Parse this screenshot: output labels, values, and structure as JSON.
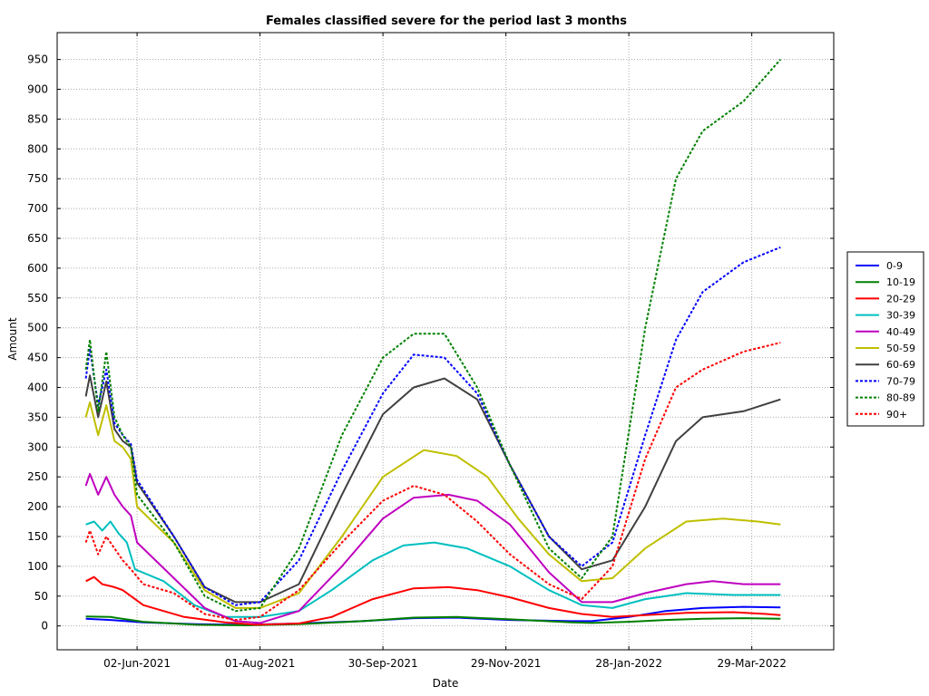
{
  "chart_data": {
    "type": "line",
    "title": "Females classified severe for the period last 3 months",
    "xlabel": "Date",
    "ylabel": "Amount",
    "xlim": [
      "2021-04-24",
      "2022-05-08"
    ],
    "ylim": [
      -40,
      995
    ],
    "yticks": [
      0,
      50,
      100,
      150,
      200,
      250,
      300,
      350,
      400,
      450,
      500,
      550,
      600,
      650,
      700,
      750,
      800,
      850,
      900,
      950
    ],
    "xticks": [
      {
        "date": "2021-06-02",
        "label": "02-Jun-2021"
      },
      {
        "date": "2021-08-01",
        "label": "01-Aug-2021"
      },
      {
        "date": "2021-09-30",
        "label": "30-Sep-2021"
      },
      {
        "date": "2021-11-29",
        "label": "29-Nov-2021"
      },
      {
        "date": "2022-01-28",
        "label": "28-Jan-2022"
      },
      {
        "date": "2022-03-29",
        "label": "29-Mar-2022"
      }
    ],
    "grid": true,
    "legend_position": "right",
    "series": [
      {
        "name": "0-9",
        "color": "#0000ff",
        "dash": false,
        "points": [
          [
            "2021-05-08",
            12
          ],
          [
            "2021-05-20",
            10
          ],
          [
            "2021-06-05",
            6
          ],
          [
            "2021-07-01",
            3
          ],
          [
            "2021-07-25",
            2
          ],
          [
            "2021-08-20",
            4
          ],
          [
            "2021-09-20",
            8
          ],
          [
            "2021-10-15",
            13
          ],
          [
            "2021-11-05",
            14
          ],
          [
            "2021-12-01",
            10
          ],
          [
            "2021-12-31",
            8
          ],
          [
            "2022-01-10",
            8
          ],
          [
            "2022-01-28",
            15
          ],
          [
            "2022-02-15",
            25
          ],
          [
            "2022-03-05",
            30
          ],
          [
            "2022-03-25",
            32
          ],
          [
            "2022-04-12",
            31
          ]
        ]
      },
      {
        "name": "10-19",
        "color": "#008000",
        "dash": false,
        "points": [
          [
            "2021-05-08",
            16
          ],
          [
            "2021-05-20",
            15
          ],
          [
            "2021-06-05",
            7
          ],
          [
            "2021-07-01",
            2
          ],
          [
            "2021-07-25",
            1
          ],
          [
            "2021-08-20",
            3
          ],
          [
            "2021-09-20",
            8
          ],
          [
            "2021-10-15",
            14
          ],
          [
            "2021-11-05",
            15
          ],
          [
            "2021-12-01",
            11
          ],
          [
            "2021-12-31",
            6
          ],
          [
            "2022-01-10",
            5
          ],
          [
            "2022-01-28",
            7
          ],
          [
            "2022-02-15",
            10
          ],
          [
            "2022-03-05",
            12
          ],
          [
            "2022-03-25",
            13
          ],
          [
            "2022-04-12",
            12
          ]
        ]
      },
      {
        "name": "20-29",
        "color": "#ff0000",
        "dash": false,
        "points": [
          [
            "2021-05-08",
            75
          ],
          [
            "2021-05-12",
            82
          ],
          [
            "2021-05-16",
            70
          ],
          [
            "2021-05-22",
            65
          ],
          [
            "2021-05-26",
            60
          ],
          [
            "2021-06-05",
            35
          ],
          [
            "2021-06-25",
            15
          ],
          [
            "2021-07-15",
            6
          ],
          [
            "2021-07-30",
            2
          ],
          [
            "2021-08-20",
            4
          ],
          [
            "2021-09-05",
            15
          ],
          [
            "2021-09-25",
            45
          ],
          [
            "2021-10-15",
            63
          ],
          [
            "2021-11-01",
            65
          ],
          [
            "2021-11-15",
            60
          ],
          [
            "2021-12-01",
            48
          ],
          [
            "2021-12-20",
            30
          ],
          [
            "2022-01-05",
            20
          ],
          [
            "2022-01-20",
            15
          ],
          [
            "2022-02-05",
            18
          ],
          [
            "2022-02-25",
            22
          ],
          [
            "2022-03-20",
            23
          ],
          [
            "2022-04-05",
            20
          ],
          [
            "2022-04-12",
            18
          ]
        ]
      },
      {
        "name": "30-39",
        "color": "#00bfbf",
        "dash": false,
        "points": [
          [
            "2021-05-08",
            170
          ],
          [
            "2021-05-12",
            175
          ],
          [
            "2021-05-16",
            160
          ],
          [
            "2021-05-20",
            175
          ],
          [
            "2021-05-24",
            155
          ],
          [
            "2021-05-28",
            140
          ],
          [
            "2021-06-01",
            95
          ],
          [
            "2021-06-15",
            75
          ],
          [
            "2021-06-30",
            35
          ],
          [
            "2021-07-15",
            15
          ],
          [
            "2021-08-01",
            15
          ],
          [
            "2021-08-20",
            25
          ],
          [
            "2021-09-05",
            60
          ],
          [
            "2021-09-25",
            110
          ],
          [
            "2021-10-10",
            135
          ],
          [
            "2021-10-25",
            140
          ],
          [
            "2021-11-10",
            130
          ],
          [
            "2021-12-01",
            100
          ],
          [
            "2021-12-20",
            60
          ],
          [
            "2022-01-05",
            35
          ],
          [
            "2022-01-20",
            30
          ],
          [
            "2022-02-05",
            45
          ],
          [
            "2022-02-25",
            55
          ],
          [
            "2022-03-20",
            52
          ],
          [
            "2022-04-12",
            52
          ]
        ]
      },
      {
        "name": "40-49",
        "color": "#bf00bf",
        "dash": false,
        "points": [
          [
            "2021-05-08",
            235
          ],
          [
            "2021-05-10",
            255
          ],
          [
            "2021-05-14",
            220
          ],
          [
            "2021-05-18",
            250
          ],
          [
            "2021-05-22",
            220
          ],
          [
            "2021-05-26",
            200
          ],
          [
            "2021-05-30",
            185
          ],
          [
            "2021-06-02",
            140
          ],
          [
            "2021-06-20",
            80
          ],
          [
            "2021-07-05",
            30
          ],
          [
            "2021-07-20",
            8
          ],
          [
            "2021-08-01",
            5
          ],
          [
            "2021-08-20",
            25
          ],
          [
            "2021-09-10",
            100
          ],
          [
            "2021-09-30",
            180
          ],
          [
            "2021-10-15",
            215
          ],
          [
            "2021-11-01",
            220
          ],
          [
            "2021-11-15",
            210
          ],
          [
            "2021-12-01",
            170
          ],
          [
            "2021-12-20",
            90
          ],
          [
            "2022-01-05",
            40
          ],
          [
            "2022-01-20",
            40
          ],
          [
            "2022-02-05",
            55
          ],
          [
            "2022-02-25",
            70
          ],
          [
            "2022-03-10",
            75
          ],
          [
            "2022-03-25",
            70
          ],
          [
            "2022-04-12",
            70
          ]
        ]
      },
      {
        "name": "50-59",
        "color": "#bfbf00",
        "dash": false,
        "points": [
          [
            "2021-05-08",
            350
          ],
          [
            "2021-05-10",
            375
          ],
          [
            "2021-05-14",
            320
          ],
          [
            "2021-05-18",
            370
          ],
          [
            "2021-05-22",
            310
          ],
          [
            "2021-05-26",
            300
          ],
          [
            "2021-05-30",
            280
          ],
          [
            "2021-06-02",
            200
          ],
          [
            "2021-06-20",
            140
          ],
          [
            "2021-07-05",
            60
          ],
          [
            "2021-07-20",
            30
          ],
          [
            "2021-08-01",
            30
          ],
          [
            "2021-08-20",
            55
          ],
          [
            "2021-09-10",
            150
          ],
          [
            "2021-09-30",
            250
          ],
          [
            "2021-10-20",
            295
          ],
          [
            "2021-11-05",
            285
          ],
          [
            "2021-11-20",
            250
          ],
          [
            "2021-12-05",
            180
          ],
          [
            "2021-12-20",
            120
          ],
          [
            "2022-01-05",
            75
          ],
          [
            "2022-01-20",
            80
          ],
          [
            "2022-02-05",
            130
          ],
          [
            "2022-02-25",
            175
          ],
          [
            "2022-03-15",
            180
          ],
          [
            "2022-04-01",
            175
          ],
          [
            "2022-04-12",
            170
          ]
        ]
      },
      {
        "name": "60-69",
        "color": "#404040",
        "dash": false,
        "points": [
          [
            "2021-05-08",
            385
          ],
          [
            "2021-05-10",
            420
          ],
          [
            "2021-05-14",
            350
          ],
          [
            "2021-05-18",
            410
          ],
          [
            "2021-05-22",
            330
          ],
          [
            "2021-05-26",
            310
          ],
          [
            "2021-05-30",
            300
          ],
          [
            "2021-06-02",
            240
          ],
          [
            "2021-06-20",
            150
          ],
          [
            "2021-07-05",
            65
          ],
          [
            "2021-07-20",
            40
          ],
          [
            "2021-08-01",
            40
          ],
          [
            "2021-08-20",
            70
          ],
          [
            "2021-09-10",
            220
          ],
          [
            "2021-09-30",
            355
          ],
          [
            "2021-10-15",
            400
          ],
          [
            "2021-10-30",
            415
          ],
          [
            "2021-11-15",
            380
          ],
          [
            "2021-12-01",
            270
          ],
          [
            "2021-12-20",
            150
          ],
          [
            "2022-01-05",
            95
          ],
          [
            "2022-01-20",
            110
          ],
          [
            "2022-02-05",
            200
          ],
          [
            "2022-02-20",
            310
          ],
          [
            "2022-03-05",
            350
          ],
          [
            "2022-03-25",
            360
          ],
          [
            "2022-04-12",
            380
          ]
        ]
      },
      {
        "name": "70-79",
        "color": "#0000ff",
        "dash": true,
        "points": [
          [
            "2021-05-08",
            415
          ],
          [
            "2021-05-10",
            465
          ],
          [
            "2021-05-14",
            370
          ],
          [
            "2021-05-18",
            430
          ],
          [
            "2021-05-22",
            340
          ],
          [
            "2021-05-26",
            320
          ],
          [
            "2021-05-30",
            305
          ],
          [
            "2021-06-02",
            245
          ],
          [
            "2021-06-20",
            150
          ],
          [
            "2021-07-05",
            65
          ],
          [
            "2021-07-20",
            35
          ],
          [
            "2021-08-01",
            40
          ],
          [
            "2021-08-20",
            110
          ],
          [
            "2021-09-10",
            260
          ],
          [
            "2021-09-30",
            390
          ],
          [
            "2021-10-15",
            455
          ],
          [
            "2021-10-30",
            450
          ],
          [
            "2021-11-15",
            390
          ],
          [
            "2021-12-01",
            270
          ],
          [
            "2021-12-20",
            150
          ],
          [
            "2022-01-05",
            100
          ],
          [
            "2022-01-20",
            140
          ],
          [
            "2022-02-05",
            320
          ],
          [
            "2022-02-20",
            480
          ],
          [
            "2022-03-05",
            560
          ],
          [
            "2022-03-25",
            610
          ],
          [
            "2022-04-12",
            635
          ]
        ]
      },
      {
        "name": "80-89",
        "color": "#008000",
        "dash": true,
        "points": [
          [
            "2021-05-08",
            430
          ],
          [
            "2021-05-10",
            480
          ],
          [
            "2021-05-14",
            360
          ],
          [
            "2021-05-18",
            460
          ],
          [
            "2021-05-22",
            350
          ],
          [
            "2021-05-26",
            320
          ],
          [
            "2021-05-30",
            300
          ],
          [
            "2021-06-02",
            220
          ],
          [
            "2021-06-20",
            140
          ],
          [
            "2021-07-05",
            50
          ],
          [
            "2021-07-20",
            25
          ],
          [
            "2021-08-01",
            30
          ],
          [
            "2021-08-20",
            130
          ],
          [
            "2021-09-10",
            320
          ],
          [
            "2021-09-30",
            450
          ],
          [
            "2021-10-15",
            490
          ],
          [
            "2021-10-30",
            490
          ],
          [
            "2021-11-15",
            400
          ],
          [
            "2021-12-01",
            270
          ],
          [
            "2021-12-20",
            130
          ],
          [
            "2022-01-05",
            80
          ],
          [
            "2022-01-20",
            150
          ],
          [
            "2022-02-05",
            500
          ],
          [
            "2022-02-20",
            750
          ],
          [
            "2022-03-05",
            830
          ],
          [
            "2022-03-25",
            880
          ],
          [
            "2022-04-12",
            950
          ]
        ]
      },
      {
        "name": "90+",
        "color": "#ff0000",
        "dash": true,
        "points": [
          [
            "2021-05-08",
            140
          ],
          [
            "2021-05-10",
            160
          ],
          [
            "2021-05-14",
            120
          ],
          [
            "2021-05-18",
            150
          ],
          [
            "2021-05-22",
            130
          ],
          [
            "2021-05-26",
            110
          ],
          [
            "2021-05-30",
            95
          ],
          [
            "2021-06-05",
            70
          ],
          [
            "2021-06-20",
            55
          ],
          [
            "2021-07-05",
            20
          ],
          [
            "2021-07-20",
            10
          ],
          [
            "2021-08-01",
            15
          ],
          [
            "2021-08-20",
            60
          ],
          [
            "2021-09-10",
            140
          ],
          [
            "2021-09-30",
            210
          ],
          [
            "2021-10-15",
            235
          ],
          [
            "2021-10-30",
            220
          ],
          [
            "2021-11-15",
            175
          ],
          [
            "2021-12-01",
            120
          ],
          [
            "2021-12-20",
            70
          ],
          [
            "2022-01-05",
            45
          ],
          [
            "2022-01-20",
            100
          ],
          [
            "2022-02-05",
            280
          ],
          [
            "2022-02-20",
            400
          ],
          [
            "2022-03-05",
            430
          ],
          [
            "2022-03-25",
            460
          ],
          [
            "2022-04-12",
            475
          ]
        ]
      }
    ]
  }
}
